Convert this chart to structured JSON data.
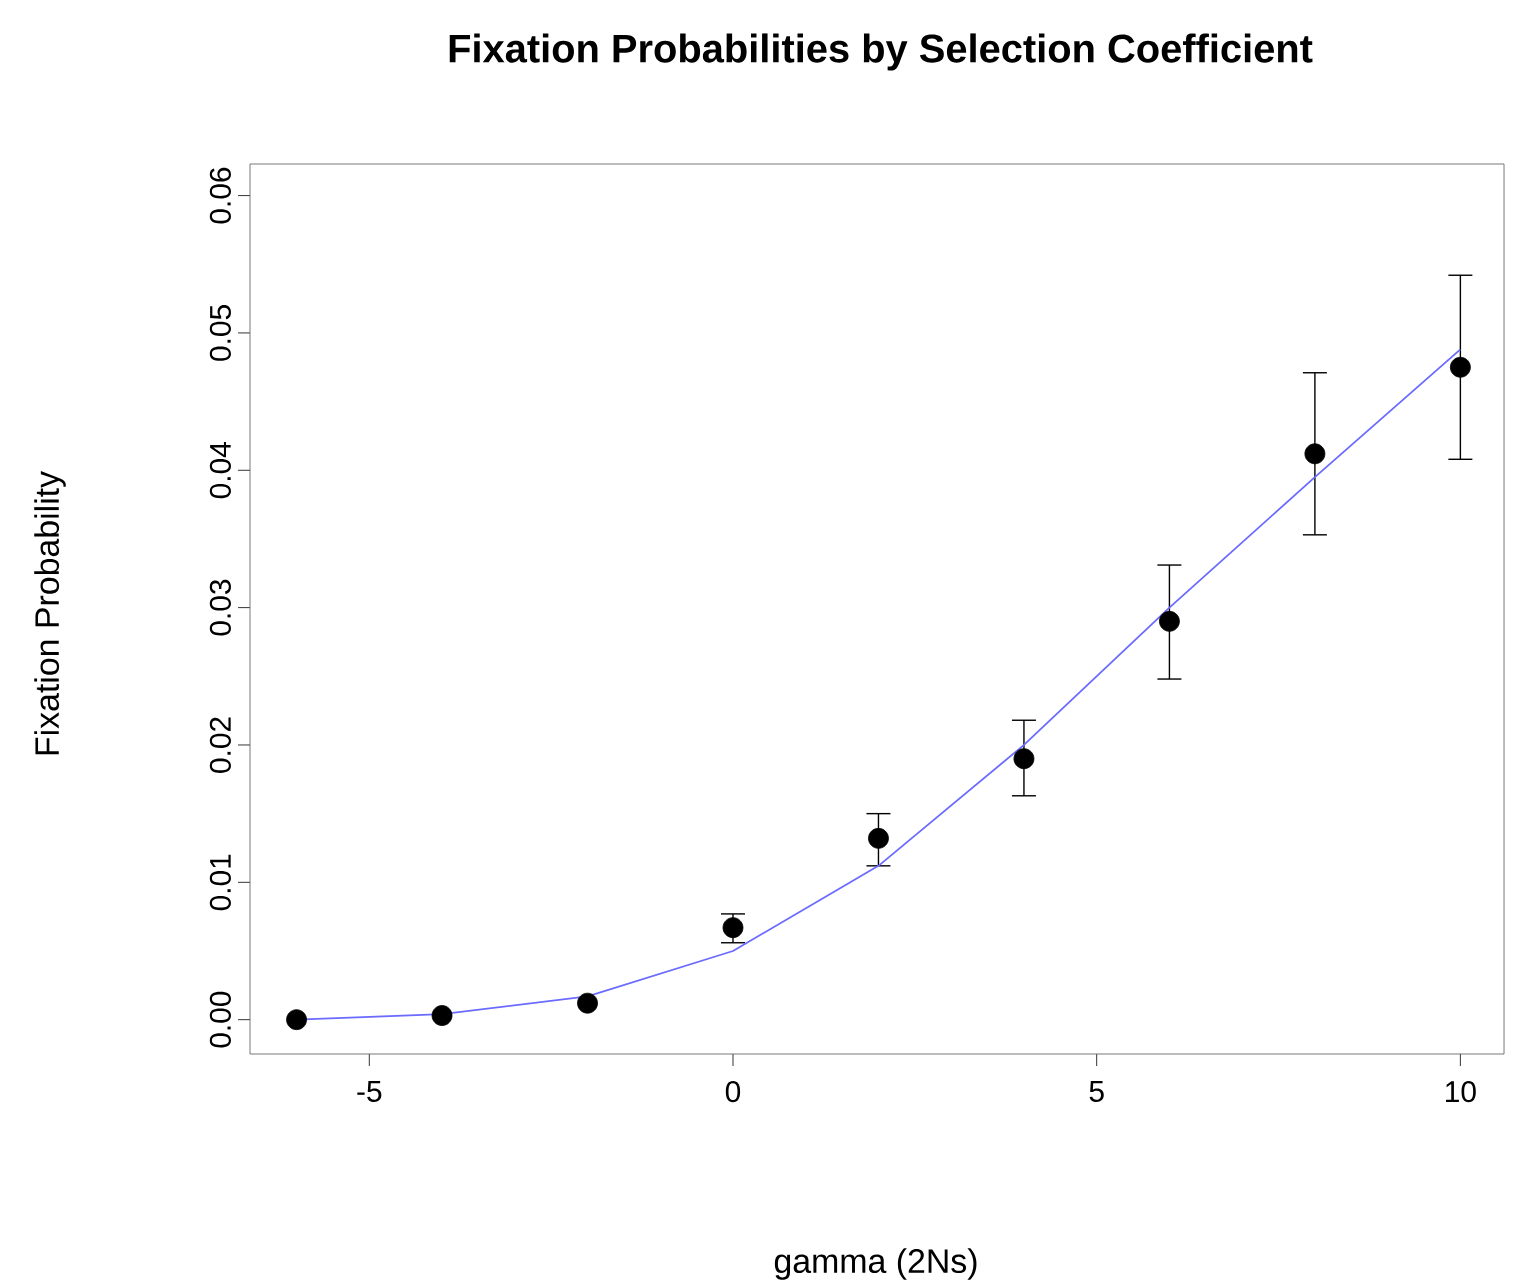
{
  "chart_data": {
    "type": "scatter",
    "title": "Fixation Probabilities by Selection Coefficient",
    "xlabel": "gamma (2Ns)",
    "ylabel": "Fixation Probability",
    "xlim": [
      -6.64,
      10.6
    ],
    "ylim": [
      -0.0025,
      0.0623
    ],
    "xticks": [
      -5,
      0,
      5,
      10
    ],
    "yticks": [
      {
        "value": 0,
        "label": "0.00"
      },
      {
        "value": 0.01,
        "label": "0.01"
      },
      {
        "value": 0.02,
        "label": "0.02"
      },
      {
        "value": 0.03,
        "label": "0.03"
      },
      {
        "value": 0.04,
        "label": "0.04"
      },
      {
        "value": 0.05,
        "label": "0.05"
      },
      {
        "value": 0.06,
        "label": "0.06"
      }
    ],
    "grid": false,
    "series": [
      {
        "color": "#000000",
        "marker": "circle",
        "x": [
          -6,
          -4,
          -2,
          0,
          2,
          4,
          6,
          8,
          10
        ],
        "values": [
          0.0,
          0.0003,
          0.0012,
          0.0067,
          0.0132,
          0.019,
          0.029,
          0.0412,
          0.0475
        ],
        "errors": [
          null,
          null,
          null,
          [
            0.0056,
            0.0077
          ],
          [
            0.0112,
            0.015
          ],
          [
            0.0163,
            0.0218
          ],
          [
            0.0248,
            0.0331
          ],
          [
            0.0353,
            0.0471
          ],
          [
            0.0408,
            0.0542
          ]
        ]
      },
      {
        "type": "line",
        "color": "#6b6bff",
        "marker": "none",
        "line_style": "solid",
        "x": [
          -6,
          -4,
          -2,
          0,
          2,
          4,
          6,
          8,
          10
        ],
        "values": [
          0.0,
          0.0004,
          0.0017,
          0.005,
          0.0112,
          0.02,
          0.03,
          0.0395,
          0.0488
        ]
      }
    ]
  }
}
